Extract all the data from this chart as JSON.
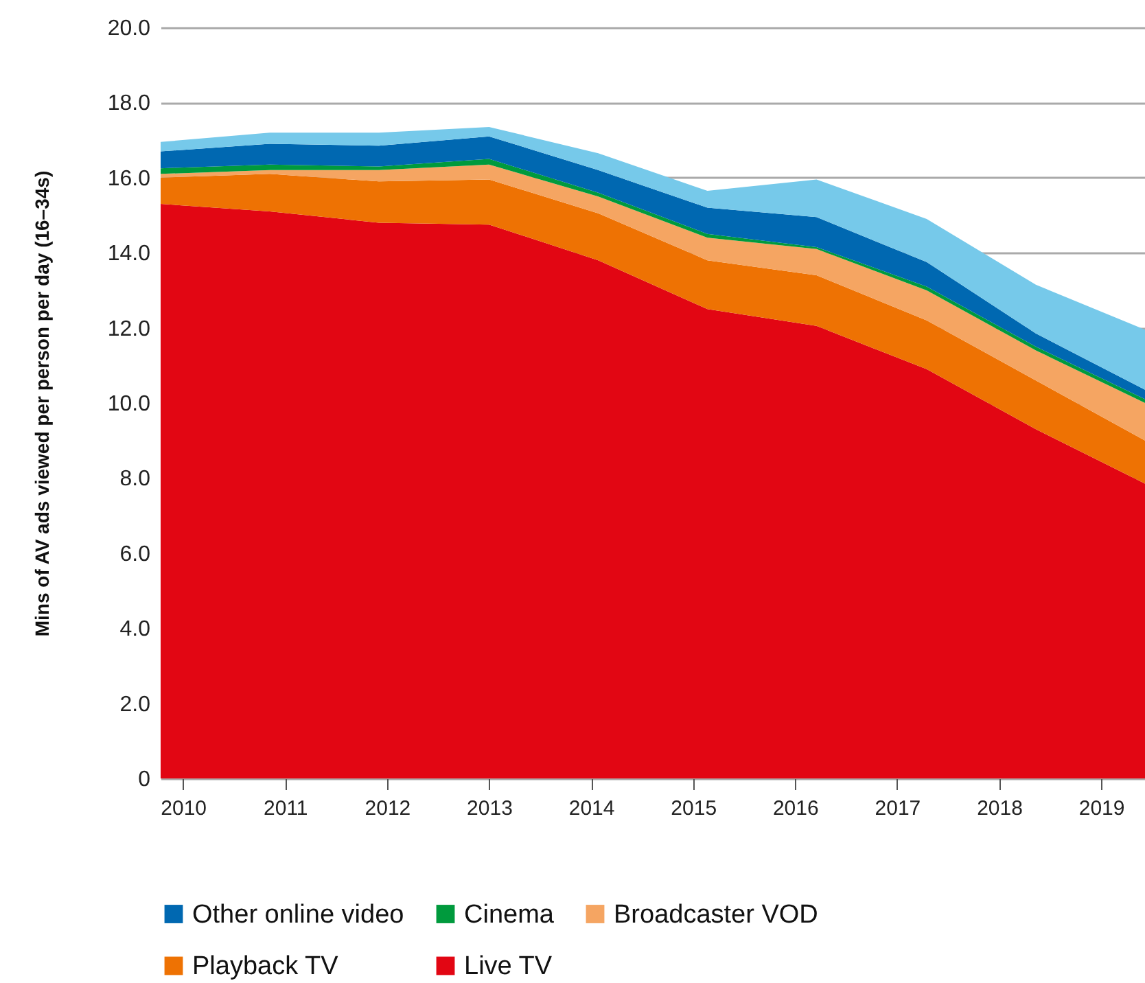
{
  "chart_data": {
    "type": "area",
    "stacked": true,
    "ylabel": "Mins of AV ads viewed per person per day (16–34s)",
    "x": [
      2009.78,
      2010.85,
      2011.92,
      2013.0,
      2014.07,
      2015.14,
      2016.21,
      2017.29,
      2018.36,
      2019.43
    ],
    "xlim": [
      2009.78,
      2019.43
    ],
    "xticks": [
      2010,
      2011,
      2012,
      2013,
      2014,
      2015,
      2016,
      2017,
      2018,
      2019
    ],
    "ylim": [
      0,
      20
    ],
    "yticks": [
      0,
      {
        "value": 2,
        "label": "2.0"
      },
      {
        "value": 4,
        "label": "4.0"
      },
      {
        "value": 6,
        "label": "6.0"
      },
      {
        "value": 8,
        "label": "8.0"
      },
      {
        "value": 10,
        "label": "10.0"
      },
      {
        "value": 12,
        "label": "12.0"
      },
      {
        "value": 14,
        "label": "14.0"
      },
      {
        "value": 16,
        "label": "16.0"
      },
      {
        "value": 18,
        "label": "18.0"
      },
      {
        "value": 20,
        "label": "20.0"
      }
    ],
    "grid": "y",
    "legend": "bottom",
    "series": [
      {
        "name": "Live TV",
        "color": "#e20613",
        "values": [
          15.3,
          15.1,
          14.8,
          14.75,
          13.8,
          12.5,
          12.05,
          10.9,
          9.3,
          7.85
        ]
      },
      {
        "name": "Playback TV",
        "color": "#ee7203",
        "values": [
          0.7,
          1.0,
          1.1,
          1.2,
          1.25,
          1.3,
          1.35,
          1.3,
          1.3,
          1.15
        ]
      },
      {
        "name": "Broadcaster VOD",
        "color": "#f5a562",
        "values": [
          0.1,
          0.1,
          0.3,
          0.4,
          0.45,
          0.6,
          0.7,
          0.8,
          0.8,
          1.0
        ]
      },
      {
        "name": "Cinema",
        "color": "#009a3d",
        "values": [
          0.15,
          0.15,
          0.1,
          0.15,
          0.1,
          0.1,
          0.05,
          0.1,
          0.1,
          0.1
        ]
      },
      {
        "name": "Other online video",
        "color": "#0068b1",
        "values": [
          0.45,
          0.55,
          0.55,
          0.6,
          0.6,
          0.7,
          0.8,
          0.65,
          0.35,
          0.25
        ]
      },
      {
        "color": "#76c9ea",
        "values": [
          0.25,
          0.3,
          0.35,
          0.25,
          0.45,
          0.45,
          1.0,
          1.15,
          1.3,
          1.6
        ]
      }
    ]
  }
}
